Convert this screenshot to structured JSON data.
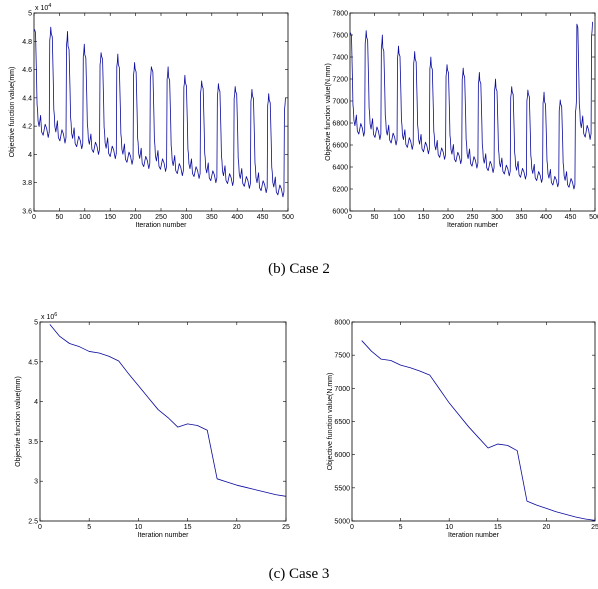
{
  "figure": {
    "caption_b": "(b) Case 2",
    "caption_c": "(c) Case 3"
  },
  "colors": {
    "line": "#0a0a9e",
    "axis": "#000000"
  },
  "chart_data": [
    {
      "type": "line",
      "xlabel": "Iteration number",
      "ylabel": "Objective function value(mm)",
      "xlim": [
        0,
        500
      ],
      "ylim": [
        3.6,
        5.0
      ],
      "xticks": [
        0,
        50,
        100,
        150,
        200,
        250,
        300,
        350,
        400,
        450,
        500
      ],
      "xtick_labels": [
        "0",
        "50",
        "100",
        "150",
        "200",
        "250",
        "300",
        "350",
        "400",
        "450",
        "500"
      ],
      "yticks": [
        3.6,
        3.8,
        4.0,
        4.2,
        4.4,
        4.6,
        4.8,
        5.0
      ],
      "ytick_labels": [
        "3.6",
        "3.8",
        "4",
        "4.2",
        "4.4",
        "4.6",
        "4.8",
        "5"
      ],
      "exponent_label": "x 10",
      "exponent_power": "4",
      "cycle": {
        "period": 33,
        "peaks": [
          4.9,
          4.87,
          4.78,
          4.72,
          4.71,
          4.65,
          4.62,
          4.62,
          4.56,
          4.52,
          4.5,
          4.48,
          4.46,
          4.43,
          4.4
        ],
        "troughs": [
          4.12,
          4.08,
          4.04,
          4.0,
          3.97,
          3.93,
          3.9,
          3.88,
          3.85,
          3.83,
          3.8,
          3.78,
          3.76,
          3.73,
          3.7
        ]
      }
    },
    {
      "type": "line",
      "xlabel": "Iteration number",
      "ylabel": "Objective function value(N.mm)",
      "xlim": [
        0,
        500
      ],
      "ylim": [
        6000,
        7800
      ],
      "xticks": [
        0,
        50,
        100,
        150,
        200,
        250,
        300,
        350,
        400,
        450,
        500
      ],
      "xtick_labels": [
        "0",
        "50",
        "100",
        "150",
        "200",
        "250",
        "300",
        "350",
        "400",
        "450",
        "500"
      ],
      "yticks": [
        6000,
        6200,
        6400,
        6600,
        6800,
        7000,
        7200,
        7400,
        7600,
        7800
      ],
      "ytick_labels": [
        "6000",
        "6200",
        "6400",
        "6600",
        "6800",
        "7000",
        "7200",
        "7400",
        "7600",
        "7800"
      ],
      "cycle": {
        "period": 33,
        "peaks": [
          7640,
          7600,
          7500,
          7450,
          7400,
          7330,
          7300,
          7260,
          7200,
          7130,
          7100,
          7080,
          7010,
          6990,
          7720
        ],
        "troughs": [
          6680,
          6650,
          6600,
          6560,
          6520,
          6470,
          6430,
          6390,
          6350,
          6320,
          6290,
          6260,
          6220,
          6200,
          6650
        ]
      }
    },
    {
      "type": "line",
      "xlabel": "Iteration number",
      "ylabel": "Objective function value(mm)",
      "xlim": [
        0,
        25
      ],
      "ylim": [
        2.5,
        5.0
      ],
      "xticks": [
        0,
        5,
        10,
        15,
        20,
        25
      ],
      "xtick_labels": [
        "0",
        "5",
        "10",
        "15",
        "20",
        "25"
      ],
      "yticks": [
        2.5,
        3.0,
        3.5,
        4.0,
        4.5,
        5.0
      ],
      "ytick_labels": [
        "2.5",
        "3",
        "3.5",
        "4",
        "4.5",
        "5"
      ],
      "exponent_label": "x 10",
      "exponent_power": "6",
      "x": [
        1,
        2,
        3,
        4,
        5,
        6,
        7,
        8,
        9,
        10,
        11,
        12,
        13,
        14,
        15,
        16,
        17,
        18,
        19,
        20,
        21,
        22,
        23,
        24,
        25
      ],
      "y": [
        4.97,
        4.82,
        4.73,
        4.69,
        4.63,
        4.61,
        4.57,
        4.51,
        4.35,
        4.2,
        4.05,
        3.9,
        3.8,
        3.68,
        3.72,
        3.7,
        3.64,
        3.03,
        2.99,
        2.95,
        2.92,
        2.89,
        2.86,
        2.83,
        2.81
      ]
    },
    {
      "type": "line",
      "xlabel": "Iteration number",
      "ylabel": "Objective function value(N.mm)",
      "xlim": [
        0,
        25
      ],
      "ylim": [
        5000,
        8000
      ],
      "xticks": [
        0,
        5,
        10,
        15,
        20,
        25
      ],
      "xtick_labels": [
        "0",
        "5",
        "10",
        "15",
        "20",
        "25"
      ],
      "yticks": [
        5000,
        5500,
        6000,
        6500,
        7000,
        7500,
        8000
      ],
      "ytick_labels": [
        "5000",
        "5500",
        "6000",
        "6500",
        "7000",
        "7500",
        "8000"
      ],
      "x": [
        1,
        2,
        3,
        4,
        5,
        6,
        7,
        8,
        9,
        10,
        11,
        12,
        13,
        14,
        15,
        16,
        17,
        18,
        19,
        20,
        21,
        22,
        23,
        24,
        25
      ],
      "y": [
        7720,
        7560,
        7440,
        7420,
        7350,
        7310,
        7260,
        7200,
        6990,
        6780,
        6600,
        6420,
        6260,
        6100,
        6160,
        6140,
        6060,
        5300,
        5240,
        5190,
        5140,
        5100,
        5060,
        5030,
        5010
      ]
    }
  ]
}
